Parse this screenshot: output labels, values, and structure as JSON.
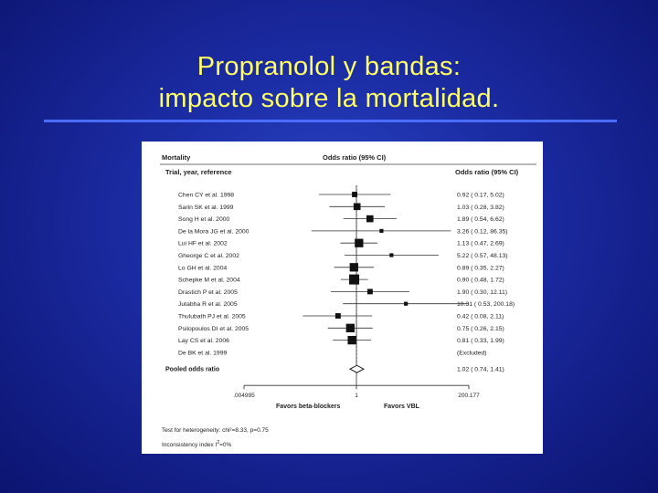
{
  "slide": {
    "title_line1": "Propranolol y bandas:",
    "title_line2": "impacto sobre la mortalidad.",
    "title_color": "#ffff66",
    "rule_color": "#4a6cff"
  },
  "chart_data": {
    "type": "forest",
    "header_left": "Mortality",
    "header_center": "Odds ratio (95% CI)",
    "col_trials_header": "Trial, year, reference",
    "col_or_header": "Odds ratio (95% CI)",
    "x_scale": "log",
    "xlim": [
      0.004995,
      200.177
    ],
    "x_ticks": [
      ".004995",
      "1",
      "200.177"
    ],
    "xlabel_left": "Favors beta-blockers",
    "xlabel_right": "Favors VBL",
    "reference_line": 1,
    "studies": [
      {
        "label": "Chen CY et al. 1998",
        "or": 0.92,
        "lo": 0.17,
        "hi": 5.02,
        "or_text": "0.92 ( 0.17, 5.02)",
        "weight": 2
      },
      {
        "label": "Sarin SK et al. 1999",
        "or": 1.03,
        "lo": 0.28,
        "hi": 3.82,
        "or_text": "1.03 ( 0.28, 3.82)",
        "weight": 3
      },
      {
        "label": "Song H et al. 2000",
        "or": 1.89,
        "lo": 0.54,
        "hi": 6.62,
        "or_text": "1.89 ( 0.54, 6.62)",
        "weight": 3
      },
      {
        "label": "De la Mora JG et al. 2000",
        "or": 3.26,
        "lo": 0.12,
        "hi": 86.35,
        "or_text": "3.26 ( 0.12, 86.35)",
        "weight": 1
      },
      {
        "label": "Lui HF et al. 2002",
        "or": 1.13,
        "lo": 0.47,
        "hi": 2.69,
        "or_text": "1.13 ( 0.47, 2.69)",
        "weight": 4
      },
      {
        "label": "Gheorge C et al. 2002",
        "or": 5.22,
        "lo": 0.57,
        "hi": 48.13,
        "or_text": "5.22 ( 0.57, 48.13)",
        "weight": 1
      },
      {
        "label": "Lo GH et al. 2004",
        "or": 0.89,
        "lo": 0.35,
        "hi": 2.27,
        "or_text": "0.89 ( 0.35, 2.27)",
        "weight": 4
      },
      {
        "label": "Schepke M et al. 2004",
        "or": 0.9,
        "lo": 0.48,
        "hi": 1.72,
        "or_text": "0.90 ( 0.48, 1.72)",
        "weight": 5
      },
      {
        "label": "Drastich P et al. 2005",
        "or": 1.9,
        "lo": 0.3,
        "hi": 12.11,
        "or_text": "1.90 ( 0.30, 12.11)",
        "weight": 2
      },
      {
        "label": "Jutabha R et al. 2005",
        "or": 10.31,
        "lo": 0.53,
        "hi": 200.18,
        "or_text": "10.31 ( 0.53, 200.18)",
        "weight": 1
      },
      {
        "label": "Thulubath PJ et al. 2005",
        "or": 0.42,
        "lo": 0.08,
        "hi": 2.11,
        "or_text": "0.42 ( 0.08, 2.11)",
        "weight": 2
      },
      {
        "label": "Psilopoulos DI et al. 2005",
        "or": 0.75,
        "lo": 0.26,
        "hi": 2.15,
        "or_text": "0.75 ( 0.26, 2.15)",
        "weight": 4
      },
      {
        "label": "Lay CS et al. 2006",
        "or": 0.81,
        "lo": 0.33,
        "hi": 1.99,
        "or_text": "0.81 ( 0.33, 1.99)",
        "weight": 4
      },
      {
        "label": "De BK et al. 1999",
        "or": null,
        "lo": null,
        "hi": null,
        "or_text": "(Excluded)",
        "weight": 0
      }
    ],
    "pooled": {
      "label": "Pooled odds ratio",
      "or": 1.02,
      "lo": 0.74,
      "hi": 1.41,
      "or_text": "1.02 ( 0.74, 1.41)"
    },
    "footnote1": "Test for heterogeneity: chi²=8.33, p=0.75",
    "footnote2_prefix": "Inconsistency index I",
    "footnote2_sup": "2",
    "footnote2_suffix": "=0%"
  }
}
